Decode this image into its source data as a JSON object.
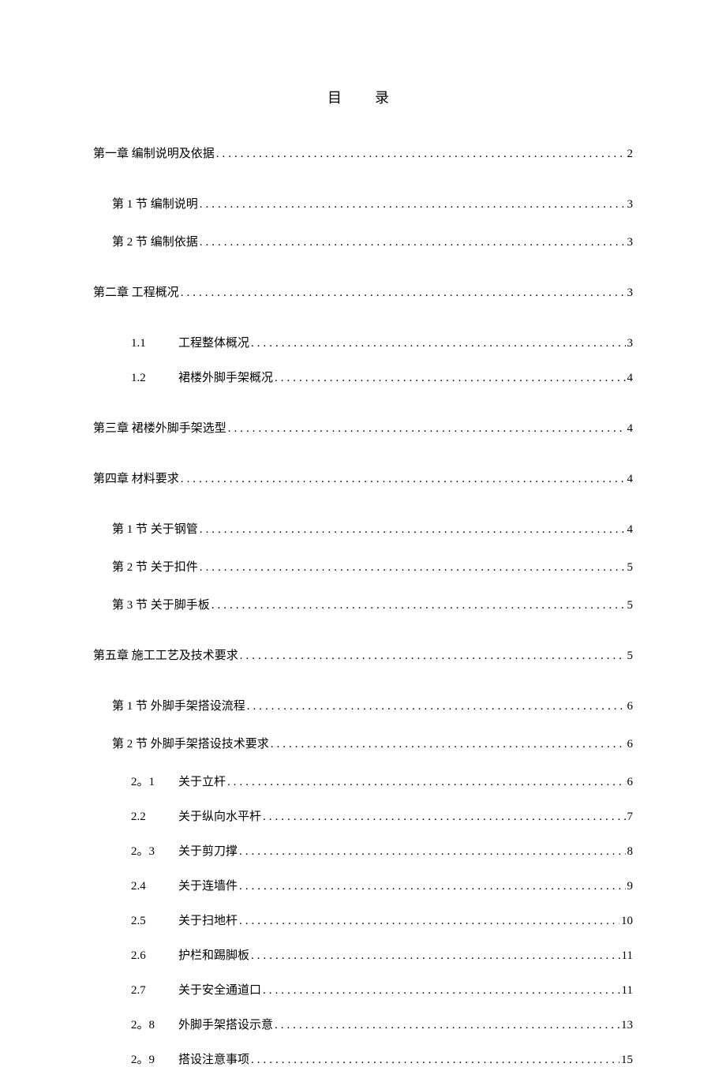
{
  "title": "目　录",
  "toc": [
    {
      "level": 0,
      "label": "第一章 编制说明及依据",
      "page": "2",
      "gap": "chapter-gap"
    },
    {
      "level": 1,
      "label": "第 1 节 编制说明",
      "page": "3",
      "gap": "section-gap"
    },
    {
      "level": 1,
      "label": "第 2 节 编制依据",
      "page": "3",
      "gap": "chapter-gap"
    },
    {
      "level": 0,
      "label": "第二章 工程概况",
      "page": "3",
      "gap": "chapter-gap"
    },
    {
      "level": 2,
      "num": "1.1",
      "label": "工程整体概况",
      "page": "3",
      "gap": "item-gap"
    },
    {
      "level": 2,
      "num": "1.2",
      "label": "裙楼外脚手架概况",
      "page": "4",
      "gap": "chapter-gap"
    },
    {
      "level": 0,
      "label": "第三章 裙楼外脚手架选型",
      "page": "4",
      "gap": "chapter-gap"
    },
    {
      "level": 0,
      "label": "第四章 材料要求",
      "page": "4",
      "gap": "chapter-gap"
    },
    {
      "level": 1,
      "label": "第 1 节 关于钢管",
      "page": "4",
      "gap": "section-gap"
    },
    {
      "level": 1,
      "label": "第 2 节 关于扣件",
      "page": "5",
      "gap": "section-gap"
    },
    {
      "level": 1,
      "label": "第 3 节 关于脚手板",
      "page": "5",
      "gap": "chapter-gap"
    },
    {
      "level": 0,
      "label": "第五章 施工工艺及技术要求",
      "page": "5",
      "gap": "chapter-gap"
    },
    {
      "level": 1,
      "label": "第 1 节 外脚手架搭设流程",
      "page": "6",
      "gap": "section-gap"
    },
    {
      "level": 1,
      "label": "第 2 节 外脚手架搭设技术要求",
      "page": "6",
      "gap": "section-gap"
    },
    {
      "level": 2,
      "num": "2。1",
      "label": "关于立杆",
      "page": "6",
      "gap": "item-gap"
    },
    {
      "level": 2,
      "num": "2.2",
      "label": "关于纵向水平杆",
      "page": "7",
      "gap": "item-gap"
    },
    {
      "level": 2,
      "num": "2。3",
      "label": "关于剪刀撑",
      "page": "8",
      "gap": "item-gap"
    },
    {
      "level": 2,
      "num": "2.4",
      "label": "关于连墙件",
      "page": "9",
      "gap": "item-gap"
    },
    {
      "level": 2,
      "num": "2.5",
      "label": "关于扫地杆",
      "page": "10",
      "gap": "item-gap"
    },
    {
      "level": 2,
      "num": "2.6",
      "label": "护栏和踢脚板",
      "page": "11",
      "gap": "item-gap"
    },
    {
      "level": 2,
      "num": "2.7",
      "label": "关于安全通道口",
      "page": "11",
      "gap": "item-gap"
    },
    {
      "level": 2,
      "num": "2。8",
      "label": "外脚手架搭设示意",
      "page": "13",
      "gap": "item-gap"
    },
    {
      "level": 2,
      "num": "2。9",
      "label": "搭设注意事项",
      "page": "15",
      "gap": null
    }
  ]
}
